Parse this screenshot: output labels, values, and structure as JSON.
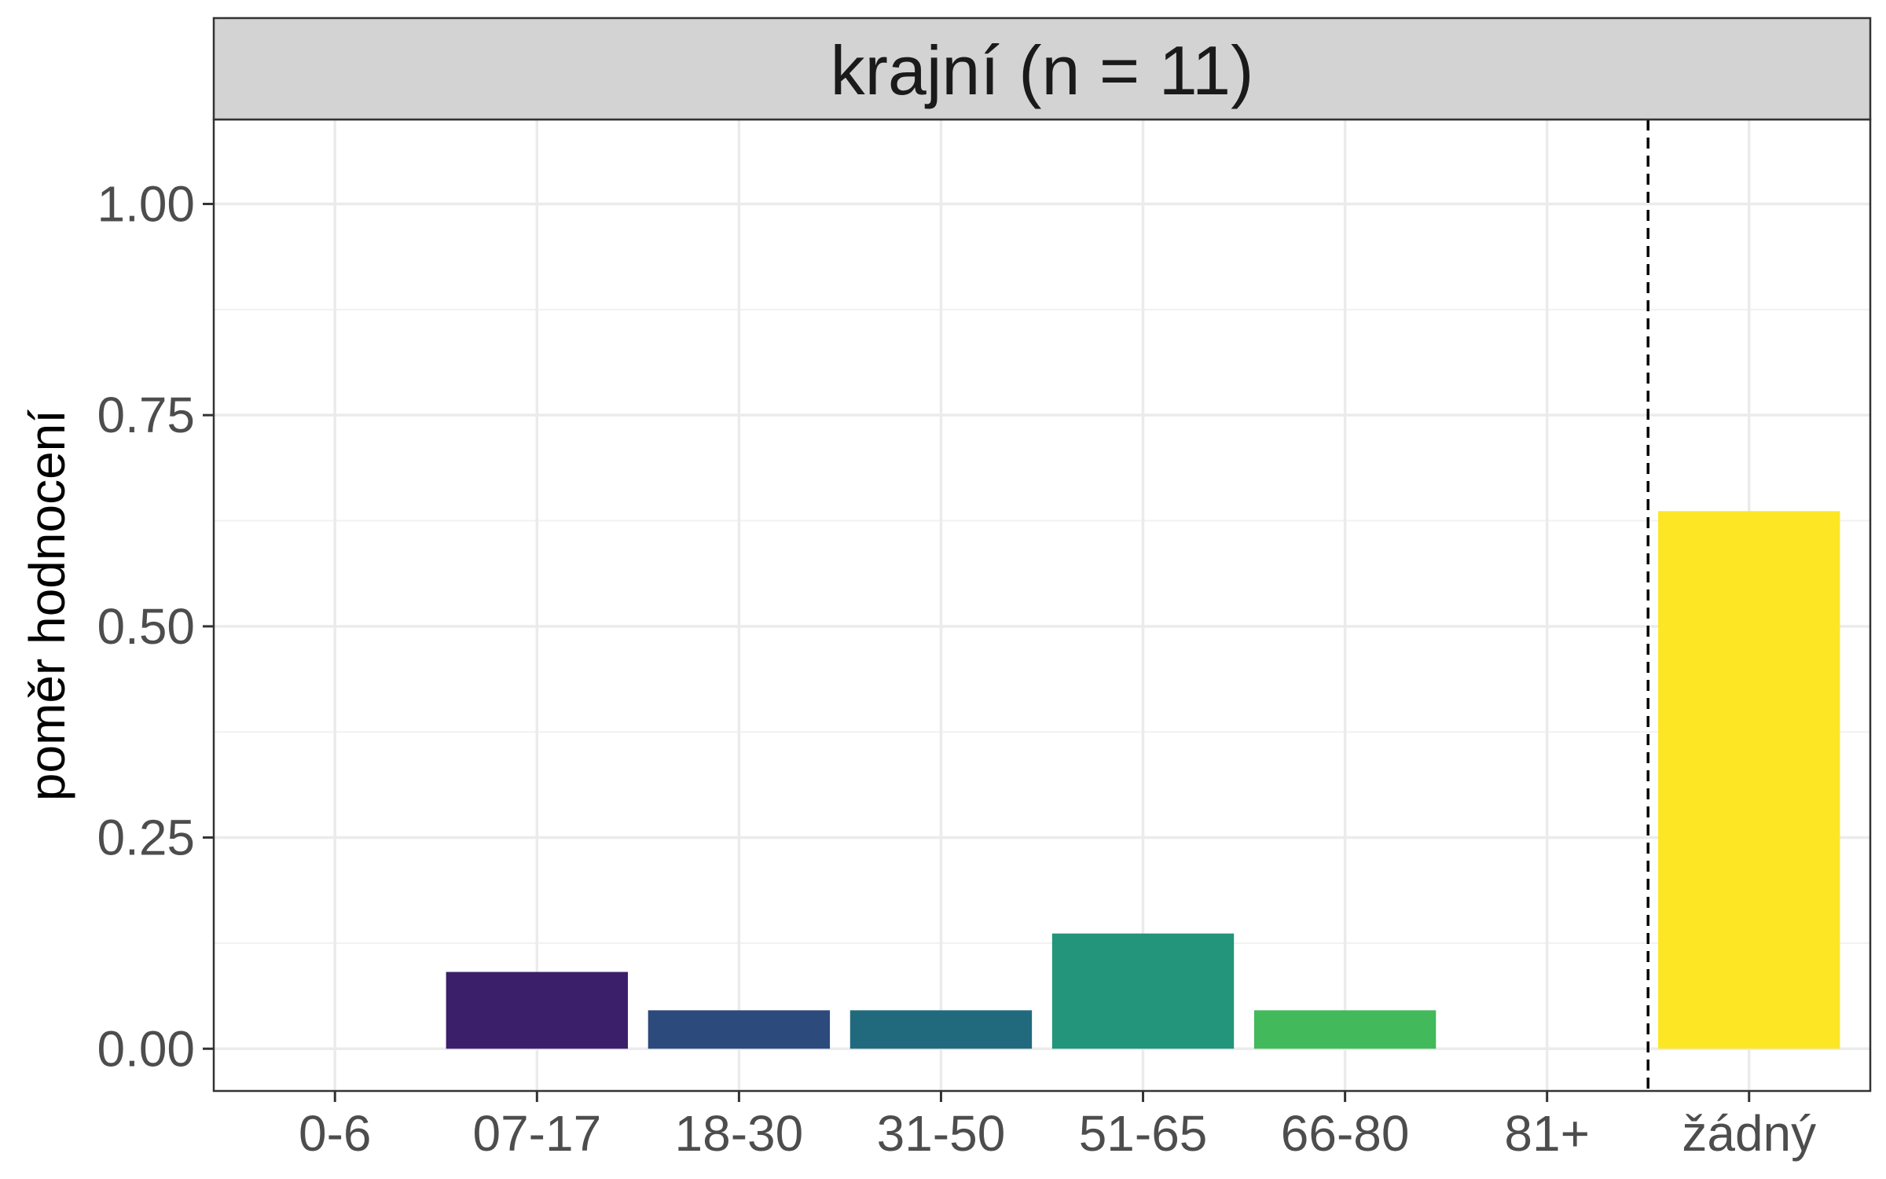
{
  "chart_data": {
    "type": "bar",
    "title": "krajní (n = 11)",
    "xlabel": "",
    "ylabel": "poměr hodnocení",
    "categories": [
      "0-6",
      "07-17",
      "18-30",
      "31-50",
      "51-65",
      "66-80",
      "81+",
      "žádný"
    ],
    "values": [
      0,
      0.0909,
      0.0455,
      0.0455,
      0.1364,
      0.0455,
      0,
      0.6364
    ],
    "colors": [
      "#440154",
      "#3b1f6b",
      "#2d4a7c",
      "#216a7e",
      "#22957a",
      "#42b95a",
      "#a8db34",
      "#fde725"
    ],
    "ylim": [
      -0.05,
      1.1
    ],
    "yticks": [
      0,
      0.25,
      0.5,
      0.75,
      1.0
    ],
    "ytick_labels": [
      "0.00",
      "0.25",
      "0.50",
      "0.75",
      "1.00"
    ],
    "reference_line": {
      "between": [
        "81+",
        "žádný"
      ],
      "style": "dashed"
    },
    "grid": true,
    "legend": "none"
  }
}
